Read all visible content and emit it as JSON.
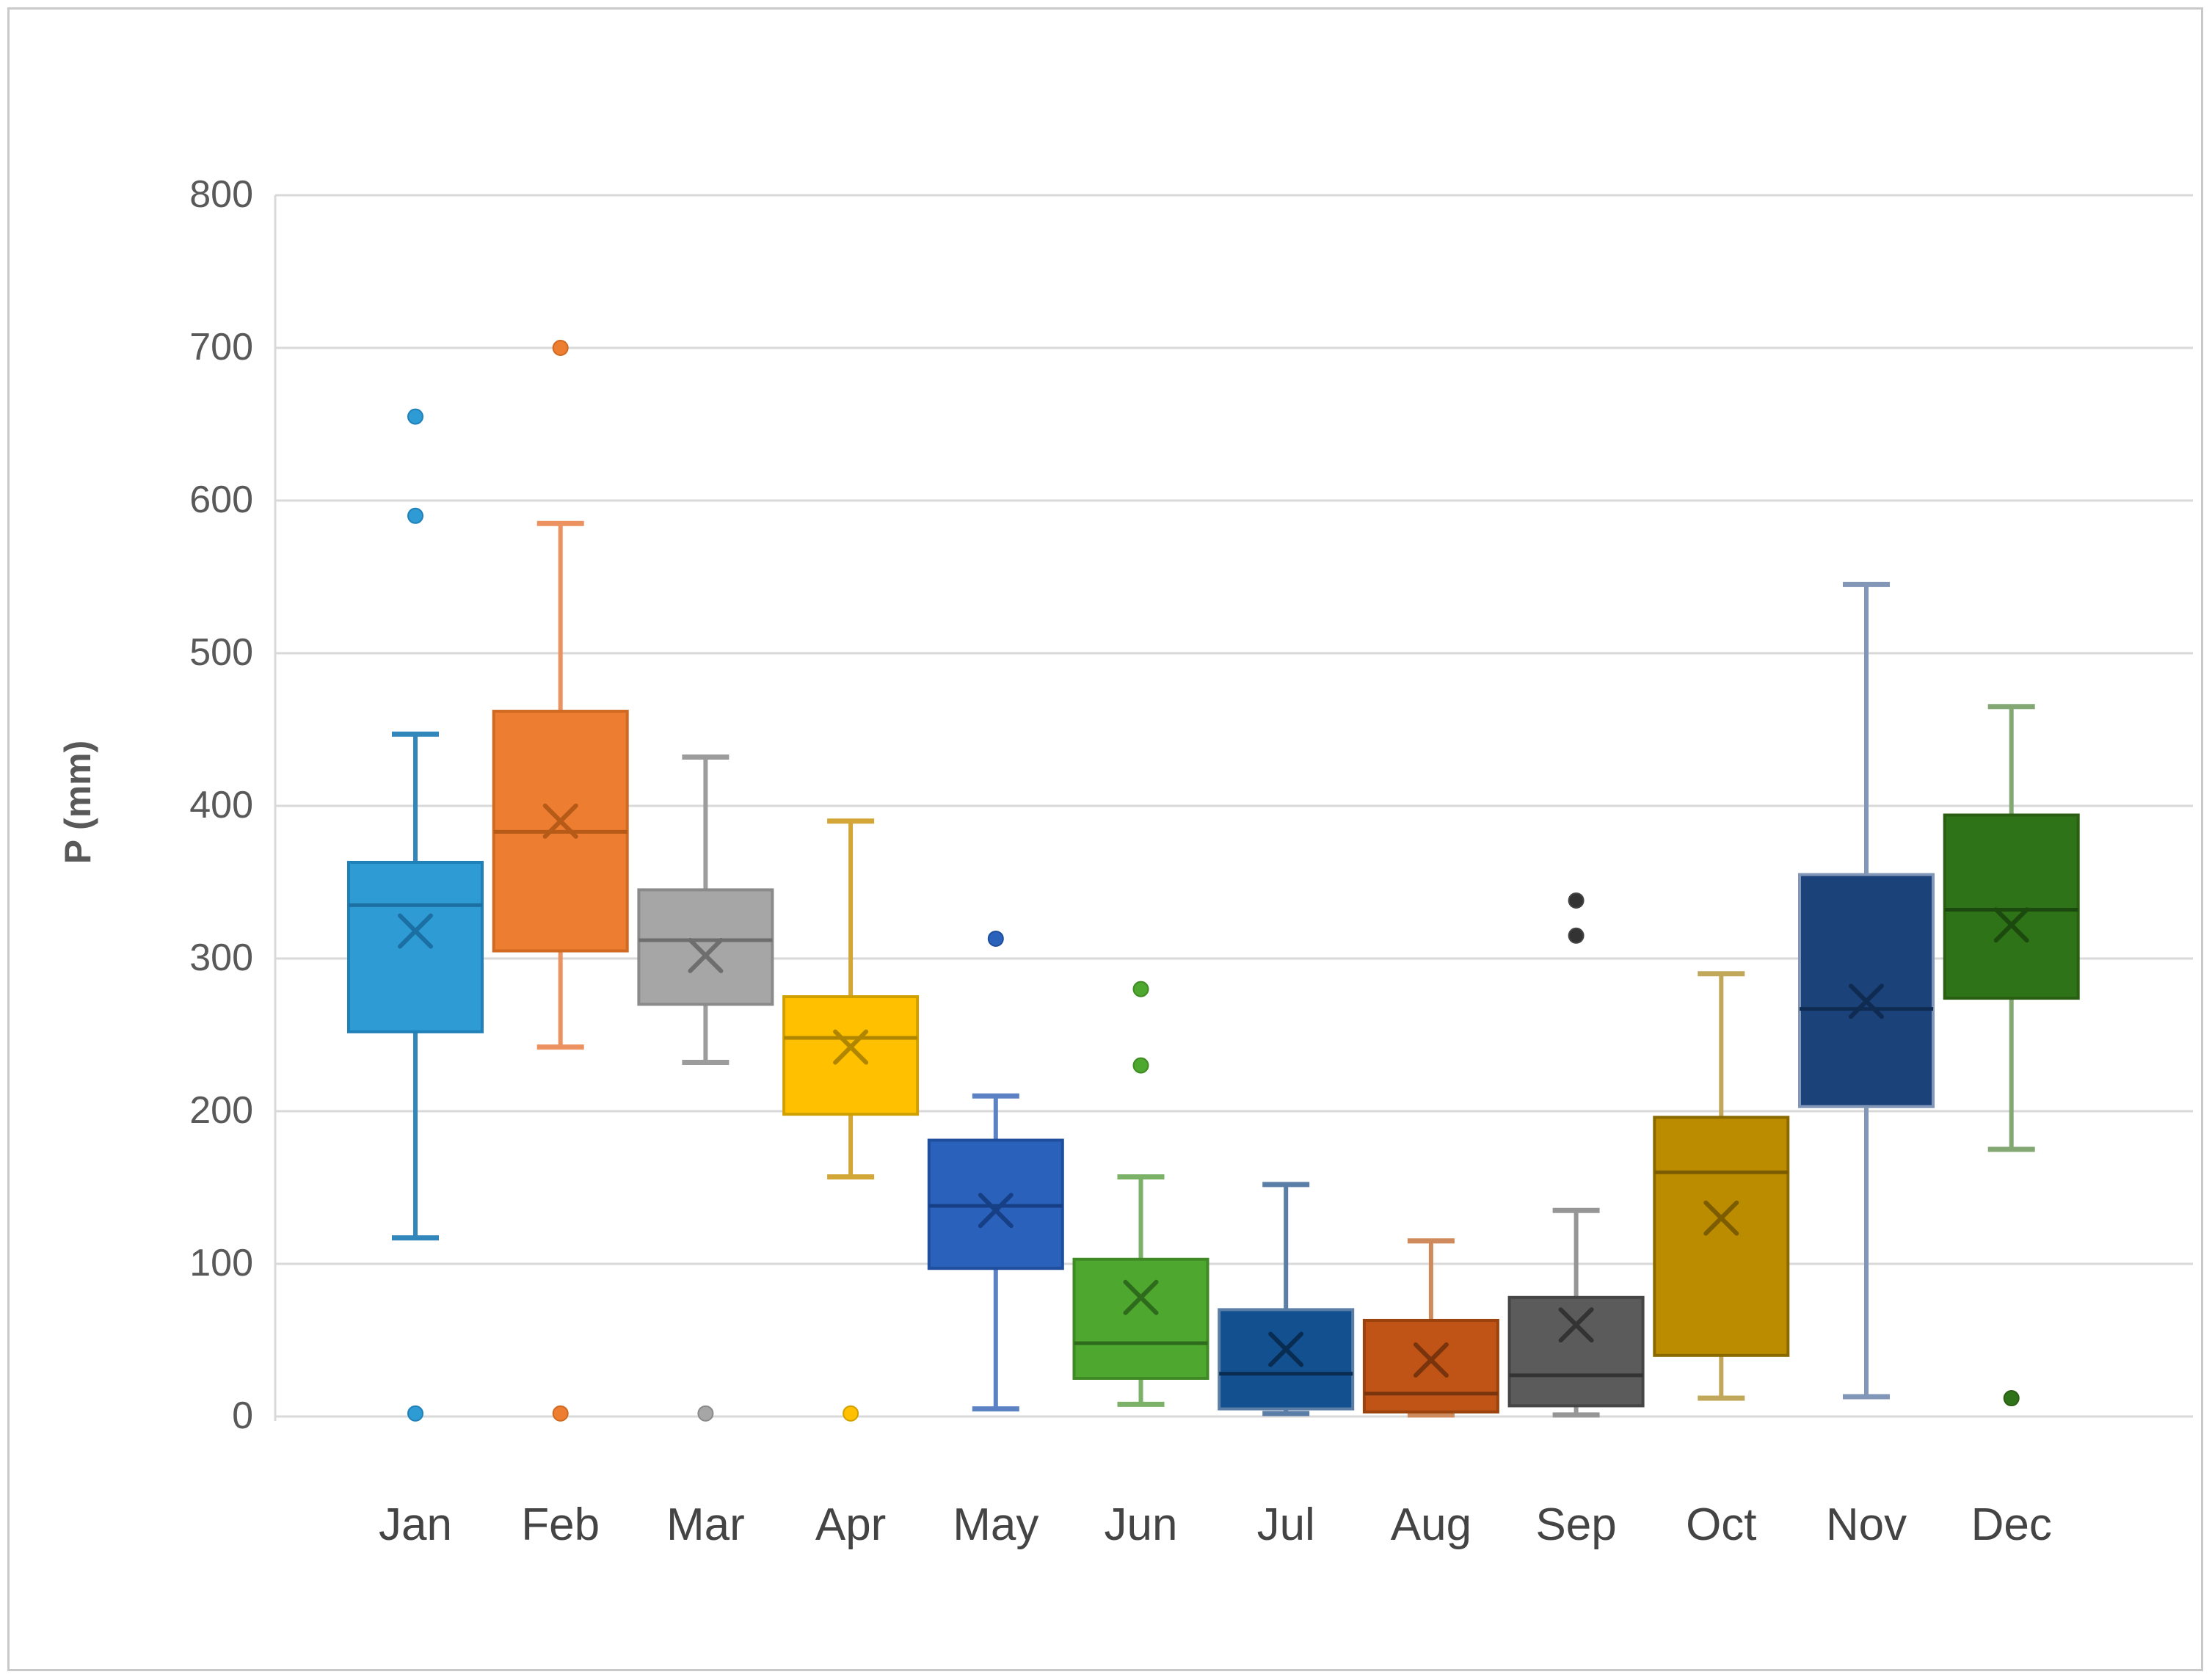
{
  "frame": {
    "background": "#FFFFFF",
    "border_color": "#C9C9C9"
  },
  "axis": {
    "y_tick_labels": [
      "0",
      "100",
      "200",
      "300",
      "400",
      "500",
      "600",
      "700",
      "800"
    ],
    "tick_color": "#595959",
    "month_label_color": "#444444",
    "grid_color": "#D9D9D9",
    "axis_line_color": "#D9D9D9"
  },
  "chart_data": {
    "type": "boxplot",
    "title": "",
    "xlabel": "",
    "ylabel": "P (mm)",
    "ylim": [
      0,
      800
    ],
    "ytick_step": 100,
    "grid": true,
    "legend": "none",
    "categories": [
      "Jan",
      "Feb",
      "Mar",
      "Apr",
      "May",
      "Jun",
      "Jul",
      "Aug",
      "Sep",
      "Oct",
      "Nov",
      "Dec"
    ],
    "series": [
      {
        "month": "Jan",
        "fill": "#2E9BD5",
        "border": "#2080B8",
        "whisker": "#3186BC",
        "accent": "#1B6FA3",
        "whisker_low": 117,
        "q1": 252,
        "median": 335,
        "q3": 363,
        "whisker_high": 447,
        "mean": 318,
        "outliers": [
          655,
          590,
          2
        ]
      },
      {
        "month": "Feb",
        "fill": "#ED7D31",
        "border": "#D06A22",
        "whisker": "#EC9160",
        "accent": "#B55A17",
        "whisker_low": 242,
        "q1": 305,
        "median": 383,
        "q3": 462,
        "whisker_high": 585,
        "mean": 390,
        "outliers": [
          700,
          2
        ]
      },
      {
        "month": "Mar",
        "fill": "#A6A6A6",
        "border": "#8A8A8A",
        "whisker": "#9C9C9C",
        "accent": "#6E6E6E",
        "whisker_low": 232,
        "q1": 270,
        "median": 312,
        "q3": 345,
        "whisker_high": 432,
        "mean": 302,
        "outliers": [
          2
        ]
      },
      {
        "month": "Apr",
        "fill": "#FFC000",
        "border": "#D0A000",
        "whisker": "#D2A637",
        "accent": "#B08600",
        "whisker_low": 157,
        "q1": 198,
        "median": 248,
        "q3": 275,
        "whisker_high": 390,
        "mean": 242,
        "outliers": [
          2
        ]
      },
      {
        "month": "May",
        "fill": "#2A62BB",
        "border": "#1E4E9C",
        "whisker": "#5C82C4",
        "accent": "#173F85",
        "whisker_low": 5,
        "q1": 97,
        "median": 138,
        "q3": 181,
        "whisker_high": 210,
        "mean": 135,
        "outliers": [
          313
        ]
      },
      {
        "month": "Jun",
        "fill": "#4EA72E",
        "border": "#3F8A24",
        "whisker": "#7CB268",
        "accent": "#2F6B1C",
        "whisker_low": 8,
        "q1": 25,
        "median": 48,
        "q3": 103,
        "whisker_high": 157,
        "mean": 78,
        "outliers": [
          280,
          230
        ]
      },
      {
        "month": "Jul",
        "fill": "#12508F",
        "border": "#5A7EA6",
        "whisker": "#5A7EA6",
        "accent": "#092C52",
        "whisker_low": 2,
        "q1": 5,
        "median": 28,
        "q3": 70,
        "whisker_high": 152,
        "mean": 44,
        "outliers": []
      },
      {
        "month": "Aug",
        "fill": "#C05316",
        "border": "#9A430F",
        "whisker": "#CE8A5C",
        "accent": "#7A340D",
        "whisker_low": 1,
        "q1": 3,
        "median": 15,
        "q3": 63,
        "whisker_high": 115,
        "mean": 37,
        "outliers": []
      },
      {
        "month": "Sep",
        "fill": "#5B5B5B",
        "border": "#454545",
        "whisker": "#969696",
        "accent": "#333333",
        "whisker_low": 1,
        "q1": 7,
        "median": 27,
        "q3": 78,
        "whisker_high": 135,
        "mean": 60,
        "outliers": [
          338,
          315
        ]
      },
      {
        "month": "Oct",
        "fill": "#BC8C00",
        "border": "#8A6A00",
        "whisker": "#C0A75A",
        "accent": "#7C5C00",
        "whisker_low": 12,
        "q1": 40,
        "median": 160,
        "q3": 196,
        "whisker_high": 290,
        "mean": 130,
        "outliers": []
      },
      {
        "month": "Nov",
        "fill": "#1B4279",
        "border": "#8296B8",
        "whisker": "#8296B8",
        "accent": "#0F2B52",
        "whisker_low": 13,
        "q1": 203,
        "median": 267,
        "q3": 355,
        "whisker_high": 545,
        "mean": 272,
        "outliers": []
      },
      {
        "month": "Dec",
        "fill": "#2E7318",
        "border": "#2A5E13",
        "whisker": "#84A873",
        "accent": "#1C4A0E",
        "whisker_low": 175,
        "q1": 274,
        "median": 332,
        "q3": 394,
        "whisker_high": 465,
        "mean": 322,
        "outliers": [
          12
        ]
      }
    ]
  }
}
